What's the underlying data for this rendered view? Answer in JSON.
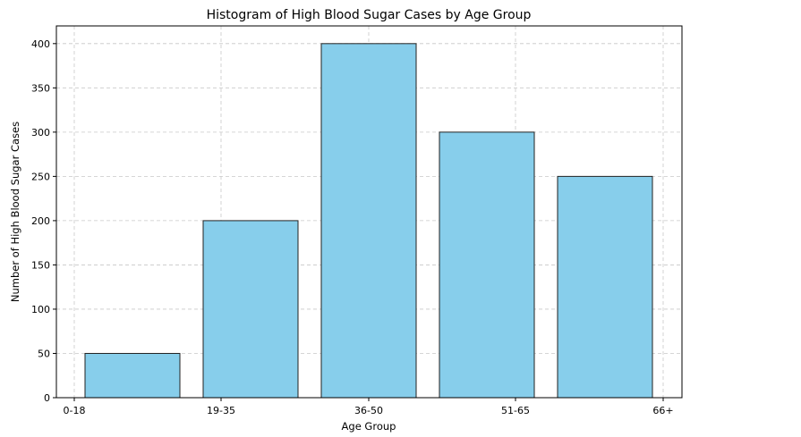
{
  "chart_data": {
    "type": "bar",
    "title": "Histogram of High Blood Sugar Cases by Age Group",
    "xlabel": "Age Group",
    "ylabel": "Number of High Blood Sugar Cases",
    "categories": [
      "0-18",
      "19-35",
      "36-50",
      "51-65",
      "66+"
    ],
    "values": [
      50,
      200,
      400,
      300,
      250
    ],
    "x_ticks": [
      "0-18",
      "19-35",
      "36-50",
      "51-65",
      "66+"
    ],
    "y_ticks": [
      0,
      50,
      100,
      150,
      200,
      250,
      300,
      350,
      400
    ],
    "ylim": [
      0,
      420
    ],
    "grid": true,
    "legend": "none",
    "colors": {
      "bar_fill": "#87CEEB",
      "bar_edge": "#222222",
      "grid": "#c8c8c8",
      "axis": "#000000"
    }
  }
}
